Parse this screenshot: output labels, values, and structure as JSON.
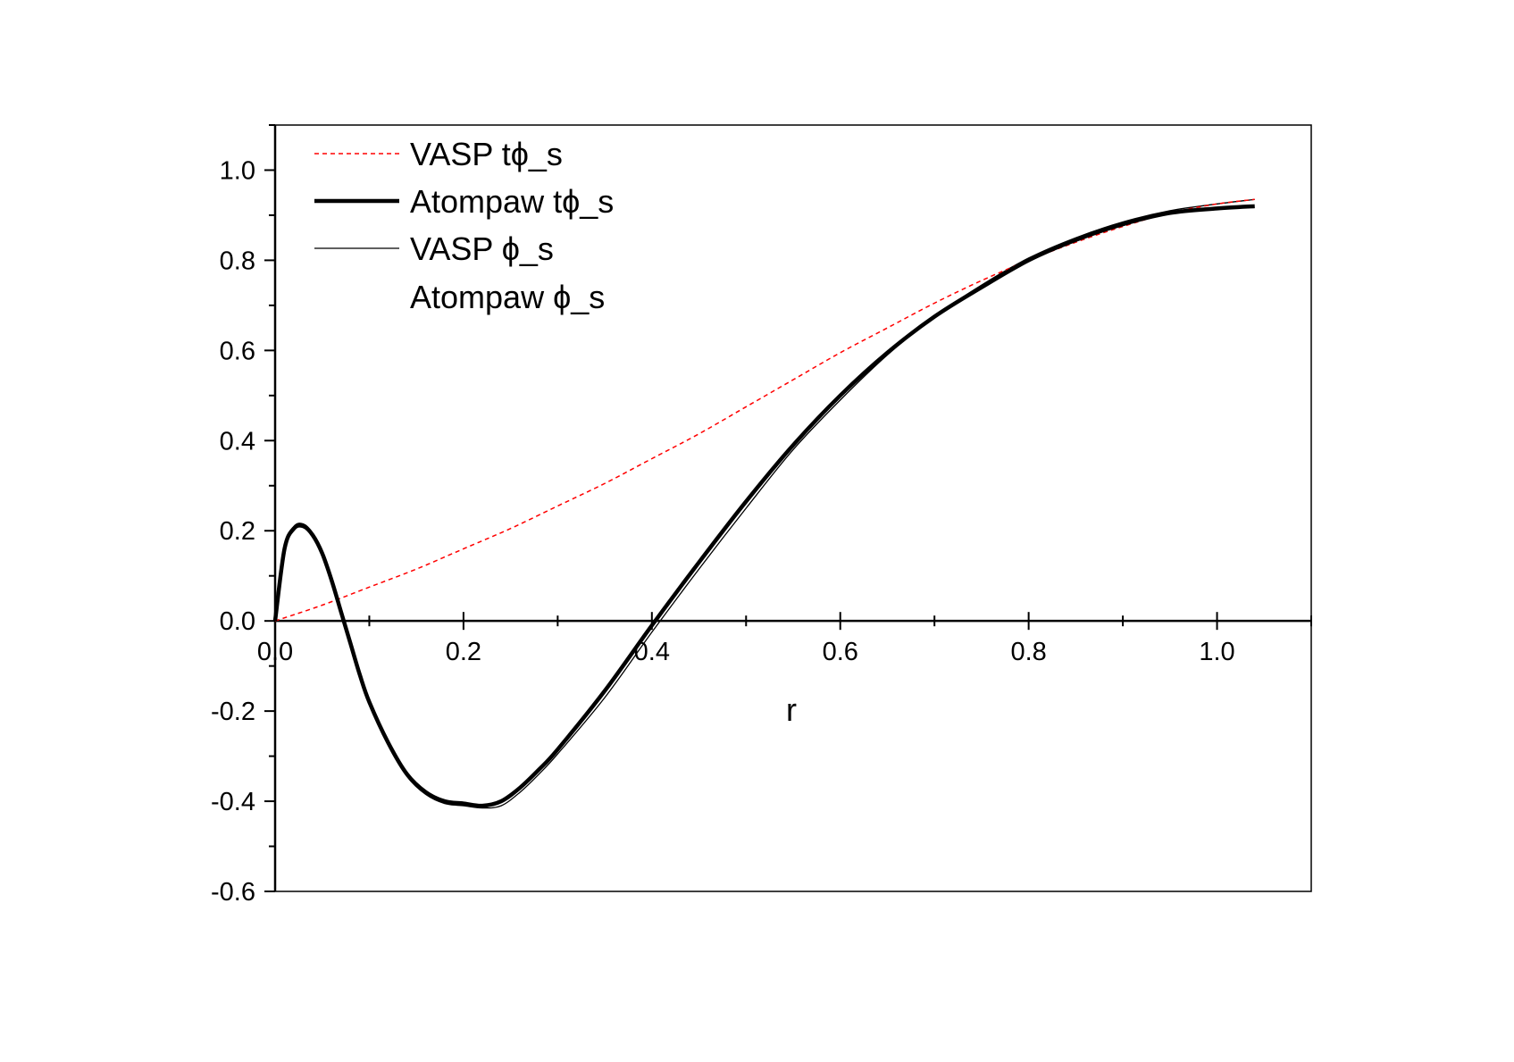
{
  "chart_data": {
    "type": "line",
    "xlabel": "r",
    "ylabel": "",
    "xlim": [
      0.0,
      1.1
    ],
    "ylim": [
      -0.6,
      1.1
    ],
    "x_ticks": [
      0.0,
      0.2,
      0.4,
      0.6,
      0.8,
      1.0
    ],
    "x_tick_labels": [
      "0.0",
      "0.2",
      "0.4",
      "0.6",
      "0.8",
      "1.0"
    ],
    "y_ticks": [
      -0.6,
      -0.4,
      -0.2,
      0.0,
      0.2,
      0.4,
      0.6,
      0.8,
      1.0
    ],
    "y_tick_labels": [
      "-0.6",
      "-0.4",
      "-0.2",
      "0.0",
      "0.2",
      "0.4",
      "0.6",
      "0.8",
      "1.0"
    ],
    "grid": false,
    "legend_position": "top-left",
    "series": [
      {
        "name": "VASP tϕ_s",
        "color": "#ff0000",
        "style": "dashed",
        "x": [
          0.0,
          0.05,
          0.1,
          0.15,
          0.2,
          0.25,
          0.3,
          0.35,
          0.4,
          0.45,
          0.5,
          0.55,
          0.6,
          0.65,
          0.7,
          0.75,
          0.8,
          0.85,
          0.9,
          0.95,
          1.0,
          1.04
        ],
        "y": [
          0.0,
          0.035,
          0.075,
          0.115,
          0.16,
          0.205,
          0.255,
          0.305,
          0.36,
          0.415,
          0.475,
          0.535,
          0.595,
          0.65,
          0.705,
          0.755,
          0.8,
          0.84,
          0.875,
          0.905,
          0.925,
          0.935
        ]
      },
      {
        "name": "Atompaw tϕ_s",
        "color": "#000000",
        "style": "thick",
        "x": [
          0.0,
          0.01,
          0.02,
          0.03,
          0.04,
          0.05,
          0.06,
          0.07,
          0.08,
          0.09,
          0.1,
          0.12,
          0.14,
          0.16,
          0.18,
          0.2,
          0.22,
          0.24,
          0.26,
          0.28,
          0.3,
          0.35,
          0.4,
          0.45,
          0.5,
          0.55,
          0.6,
          0.65,
          0.7,
          0.75,
          0.8,
          0.85,
          0.9,
          0.95,
          1.0,
          1.04
        ],
        "y": [
          0.0,
          0.16,
          0.205,
          0.21,
          0.19,
          0.15,
          0.09,
          0.02,
          -0.05,
          -0.12,
          -0.18,
          -0.27,
          -0.34,
          -0.38,
          -0.4,
          -0.405,
          -0.41,
          -0.4,
          -0.37,
          -0.33,
          -0.285,
          -0.155,
          -0.01,
          0.13,
          0.265,
          0.39,
          0.5,
          0.595,
          0.675,
          0.74,
          0.8,
          0.845,
          0.88,
          0.905,
          0.915,
          0.92
        ]
      },
      {
        "name": "VASP ϕ_s",
        "color": "#000000",
        "style": "thin",
        "x": [
          0.0,
          0.01,
          0.02,
          0.03,
          0.04,
          0.05,
          0.06,
          0.07,
          0.08,
          0.09,
          0.1,
          0.12,
          0.14,
          0.16,
          0.18,
          0.2,
          0.22,
          0.24,
          0.26,
          0.28,
          0.3,
          0.35,
          0.4,
          0.45,
          0.5,
          0.55,
          0.6,
          0.65,
          0.7,
          0.75,
          0.8,
          0.85,
          0.9,
          0.95,
          1.0,
          1.04
        ],
        "y": [
          0.0,
          0.165,
          0.21,
          0.215,
          0.195,
          0.155,
          0.095,
          0.025,
          -0.045,
          -0.115,
          -0.18,
          -0.275,
          -0.345,
          -0.385,
          -0.405,
          -0.41,
          -0.415,
          -0.41,
          -0.38,
          -0.34,
          -0.295,
          -0.17,
          -0.025,
          0.115,
          0.25,
          0.38,
          0.49,
          0.59,
          0.675,
          0.745,
          0.805,
          0.85,
          0.885,
          0.91,
          0.925,
          0.935
        ]
      },
      {
        "name": "Atompaw ϕ_s",
        "color": "#000000",
        "style": "none",
        "x": [],
        "y": []
      }
    ]
  }
}
